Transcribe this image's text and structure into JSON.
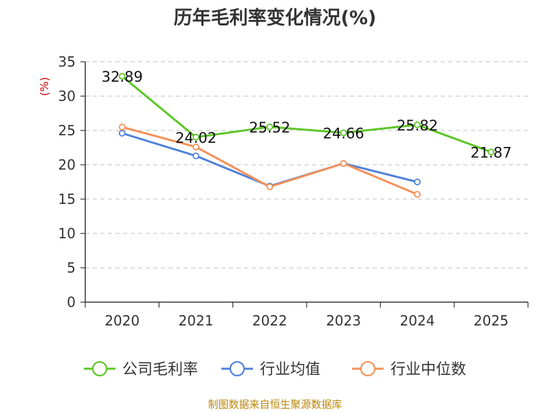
{
  "chart_data": {
    "type": "line",
    "title": "历年毛利率变化情况(%)",
    "ylabel": "(%)",
    "xlabel": "",
    "categories": [
      "2020",
      "2021",
      "2022",
      "2023",
      "2024",
      "2025"
    ],
    "ylim": [
      0,
      35
    ],
    "yticks": [
      0,
      5,
      10,
      15,
      20,
      25,
      30,
      35
    ],
    "grid": true,
    "legend_position": "bottom",
    "series": [
      {
        "name": "公司毛利率",
        "color": "#5cc626",
        "values": [
          32.89,
          24.02,
          25.52,
          24.66,
          25.82,
          21.87
        ],
        "data_labels": [
          "32.89",
          "24.02",
          "25.52",
          "24.66",
          "25.82",
          "21.87"
        ]
      },
      {
        "name": "行业均值",
        "color": "#4f80d9",
        "values": [
          24.6,
          21.3,
          16.9,
          20.2,
          17.5,
          null
        ]
      },
      {
        "name": "行业中位数",
        "color": "#f59058",
        "values": [
          25.5,
          22.6,
          16.8,
          20.2,
          15.7,
          null
        ]
      }
    ]
  },
  "footer": "制图数据来自恒生聚源数据库"
}
